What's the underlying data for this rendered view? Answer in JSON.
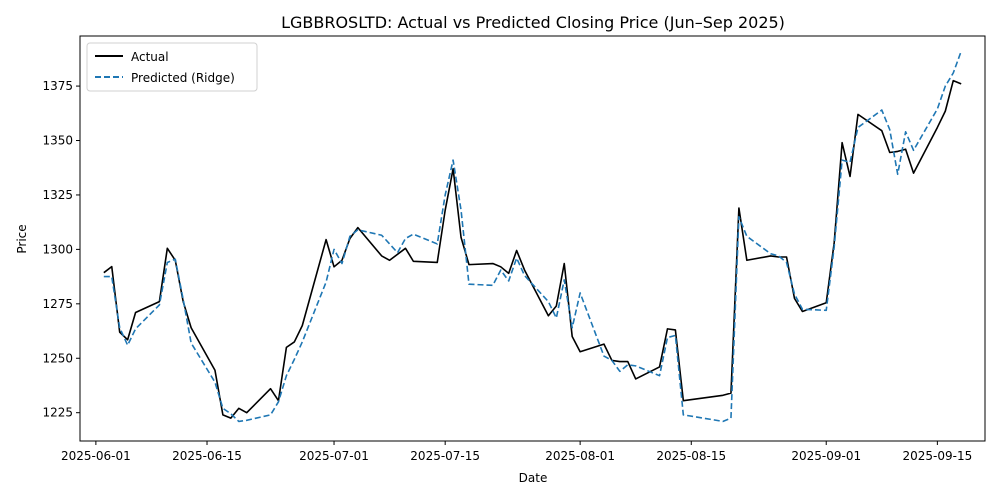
{
  "chart_data": {
    "type": "line",
    "title": "LGBBROSLTD: Actual vs Predicted Closing Price (Jun–Sep 2025)",
    "xlabel": "Date",
    "ylabel": "Price",
    "x_ticks": [
      "2025-06-01",
      "2025-06-15",
      "2025-07-01",
      "2025-07-15",
      "2025-08-01",
      "2025-08-15",
      "2025-09-01",
      "2025-09-15"
    ],
    "y_ticks": [
      1225,
      1250,
      1275,
      1300,
      1325,
      1350,
      1375
    ],
    "ylim": [
      1212,
      1398
    ],
    "xlim": [
      "2025-05-30",
      "2025-09-21"
    ],
    "grid": false,
    "legend_position": "top-left",
    "series": [
      {
        "name": "Actual",
        "color": "#000000",
        "style": "solid",
        "points": [
          [
            "2025-06-02",
            1289.3
          ],
          [
            "2025-06-03",
            1292.1
          ],
          [
            "2025-06-04",
            1262.0
          ],
          [
            "2025-06-05",
            1258.5
          ],
          [
            "2025-06-06",
            1271.0
          ],
          [
            "2025-06-09",
            1276.0
          ],
          [
            "2025-06-10",
            1300.5
          ],
          [
            "2025-06-11",
            1295.0
          ],
          [
            "2025-06-12",
            1276.0
          ],
          [
            "2025-06-13",
            1264.0
          ],
          [
            "2025-06-16",
            1244.5
          ],
          [
            "2025-06-17",
            1224.0
          ],
          [
            "2025-06-18",
            1222.5
          ],
          [
            "2025-06-19",
            1227.0
          ],
          [
            "2025-06-20",
            1225.0
          ],
          [
            "2025-06-23",
            1236.0
          ],
          [
            "2025-06-24",
            1230.5
          ],
          [
            "2025-06-25",
            1255.0
          ],
          [
            "2025-06-26",
            1257.5
          ],
          [
            "2025-06-27",
            1265.0
          ],
          [
            "2025-06-30",
            1304.5
          ],
          [
            "2025-07-01",
            1292.0
          ],
          [
            "2025-07-02",
            1295.0
          ],
          [
            "2025-07-03",
            1305.0
          ],
          [
            "2025-07-04",
            1310.0
          ],
          [
            "2025-07-07",
            1297.0
          ],
          [
            "2025-07-08",
            1295.0
          ],
          [
            "2025-07-10",
            1300.5
          ],
          [
            "2025-07-11",
            1294.5
          ],
          [
            "2025-07-14",
            1294.0
          ],
          [
            "2025-07-15",
            1318.0
          ],
          [
            "2025-07-16",
            1337.0
          ],
          [
            "2025-07-17",
            1305.5
          ],
          [
            "2025-07-18",
            1293.0
          ],
          [
            "2025-07-21",
            1293.5
          ],
          [
            "2025-07-22",
            1292.0
          ],
          [
            "2025-07-23",
            1289.0
          ],
          [
            "2025-07-24",
            1299.5
          ],
          [
            "2025-07-25",
            1290.5
          ],
          [
            "2025-07-28",
            1269.5
          ],
          [
            "2025-07-29",
            1274.0
          ],
          [
            "2025-07-30",
            1293.5
          ],
          [
            "2025-07-31",
            1260.0
          ],
          [
            "2025-08-01",
            1253.0
          ],
          [
            "2025-08-04",
            1256.5
          ],
          [
            "2025-08-05",
            1249.0
          ],
          [
            "2025-08-06",
            1248.5
          ],
          [
            "2025-08-07",
            1248.5
          ],
          [
            "2025-08-08",
            1240.5
          ],
          [
            "2025-08-11",
            1246.0
          ],
          [
            "2025-08-12",
            1263.5
          ],
          [
            "2025-08-13",
            1263.0
          ],
          [
            "2025-08-14",
            1230.5
          ],
          [
            "2025-08-19",
            1233.0
          ],
          [
            "2025-08-20",
            1234.0
          ],
          [
            "2025-08-21",
            1319.0
          ],
          [
            "2025-08-22",
            1295.0
          ],
          [
            "2025-08-25",
            1297.0
          ],
          [
            "2025-08-26",
            1296.5
          ],
          [
            "2025-08-27",
            1296.5
          ],
          [
            "2025-08-28",
            1277.5
          ],
          [
            "2025-08-29",
            1271.5
          ],
          [
            "2025-09-01",
            1275.5
          ],
          [
            "2025-09-02",
            1303.0
          ],
          [
            "2025-09-03",
            1349.0
          ],
          [
            "2025-09-04",
            1333.5
          ],
          [
            "2025-09-05",
            1362.0
          ],
          [
            "2025-09-08",
            1354.5
          ],
          [
            "2025-09-09",
            1344.5
          ],
          [
            "2025-09-10",
            1345.0
          ],
          [
            "2025-09-11",
            1346.0
          ],
          [
            "2025-09-12",
            1335.0
          ],
          [
            "2025-09-15",
            1356.0
          ],
          [
            "2025-09-16",
            1363.5
          ],
          [
            "2025-09-17",
            1377.5
          ],
          [
            "2025-09-18",
            1376.0
          ]
        ]
      },
      {
        "name": "Predicted (Ridge)",
        "color": "#1f77b4",
        "style": "dashed",
        "points": [
          [
            "2025-06-02",
            1287.5
          ],
          [
            "2025-06-03",
            1287.5
          ],
          [
            "2025-06-04",
            1264.0
          ],
          [
            "2025-06-05",
            1256.0
          ],
          [
            "2025-06-06",
            1263.5
          ],
          [
            "2025-06-09",
            1274.5
          ],
          [
            "2025-06-10",
            1294.0
          ],
          [
            "2025-06-11",
            1295.5
          ],
          [
            "2025-06-12",
            1277.0
          ],
          [
            "2025-06-13",
            1257.0
          ],
          [
            "2025-06-16",
            1239.0
          ],
          [
            "2025-06-17",
            1227.0
          ],
          [
            "2025-06-18",
            1224.5
          ],
          [
            "2025-06-19",
            1221.0
          ],
          [
            "2025-06-20",
            1221.5
          ],
          [
            "2025-06-23",
            1224.0
          ],
          [
            "2025-06-24",
            1230.0
          ],
          [
            "2025-06-25",
            1242.0
          ],
          [
            "2025-06-26",
            1249.5
          ],
          [
            "2025-06-27",
            1257.5
          ],
          [
            "2025-06-30",
            1285.0
          ],
          [
            "2025-07-01",
            1300.0
          ],
          [
            "2025-07-02",
            1293.5
          ],
          [
            "2025-07-03",
            1306.0
          ],
          [
            "2025-07-04",
            1309.0
          ],
          [
            "2025-07-07",
            1306.5
          ],
          [
            "2025-07-08",
            1302.5
          ],
          [
            "2025-07-09",
            1298.5
          ],
          [
            "2025-07-10",
            1305.0
          ],
          [
            "2025-07-11",
            1307.0
          ],
          [
            "2025-07-14",
            1302.5
          ],
          [
            "2025-07-15",
            1325.0
          ],
          [
            "2025-07-16",
            1341.0
          ],
          [
            "2025-07-17",
            1318.0
          ],
          [
            "2025-07-18",
            1284.0
          ],
          [
            "2025-07-21",
            1283.5
          ],
          [
            "2025-07-22",
            1290.5
          ],
          [
            "2025-07-23",
            1285.5
          ],
          [
            "2025-07-24",
            1296.0
          ],
          [
            "2025-07-25",
            1288.0
          ],
          [
            "2025-07-28",
            1276.0
          ],
          [
            "2025-07-29",
            1268.5
          ],
          [
            "2025-07-30",
            1286.0
          ],
          [
            "2025-07-31",
            1264.0
          ],
          [
            "2025-08-01",
            1280.0
          ],
          [
            "2025-08-04",
            1251.0
          ],
          [
            "2025-08-05",
            1249.0
          ],
          [
            "2025-08-06",
            1244.0
          ],
          [
            "2025-08-07",
            1247.0
          ],
          [
            "2025-08-08",
            1246.5
          ],
          [
            "2025-08-11",
            1242.0
          ],
          [
            "2025-08-12",
            1259.5
          ],
          [
            "2025-08-13",
            1260.5
          ],
          [
            "2025-08-14",
            1224.0
          ],
          [
            "2025-08-19",
            1221.0
          ],
          [
            "2025-08-20",
            1222.5
          ],
          [
            "2025-08-21",
            1315.0
          ],
          [
            "2025-08-22",
            1306.0
          ],
          [
            "2025-08-25",
            1298.0
          ],
          [
            "2025-08-26",
            1297.0
          ],
          [
            "2025-08-27",
            1294.0
          ],
          [
            "2025-08-28",
            1279.5
          ],
          [
            "2025-08-29",
            1272.5
          ],
          [
            "2025-09-01",
            1272.0
          ],
          [
            "2025-09-02",
            1301.0
          ],
          [
            "2025-09-03",
            1341.0
          ],
          [
            "2025-09-04",
            1340.0
          ],
          [
            "2025-09-05",
            1356.0
          ],
          [
            "2025-09-08",
            1364.0
          ],
          [
            "2025-09-09",
            1355.0
          ],
          [
            "2025-09-10",
            1334.5
          ],
          [
            "2025-09-11",
            1354.0
          ],
          [
            "2025-09-12",
            1345.5
          ],
          [
            "2025-09-15",
            1364.5
          ],
          [
            "2025-09-16",
            1375.0
          ],
          [
            "2025-09-17",
            1381.0
          ],
          [
            "2025-09-18",
            1391.0
          ]
        ]
      }
    ]
  }
}
